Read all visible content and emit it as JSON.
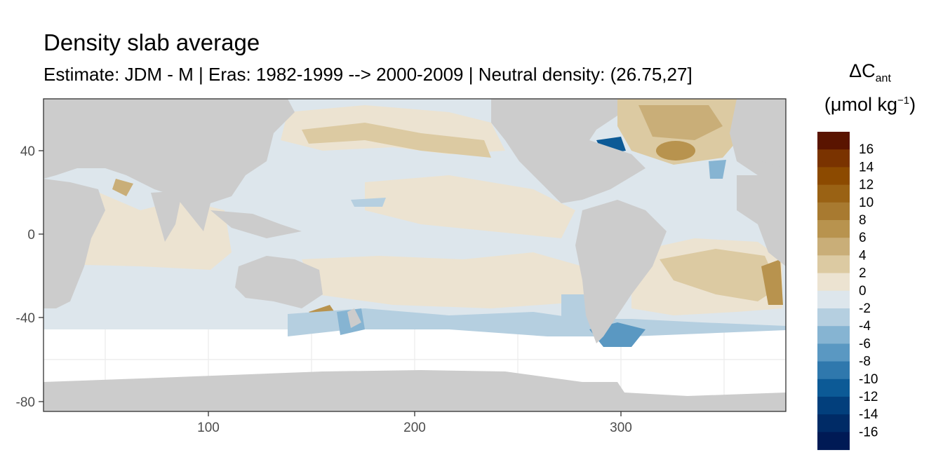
{
  "title": "Density slab average",
  "subtitle": "Estimate: JDM - M | Eras: 1982-1999 --> 2000-2009 | Neutral density: (26.75,27]",
  "legend": {
    "title_symbol": "ΔC",
    "title_subscript": "ant",
    "unit_prefix": "(μmol kg",
    "unit_superscript": "−1",
    "unit_suffix": ")",
    "bins": [
      {
        "label": "16",
        "color": "#5a1400"
      },
      {
        "label": "14",
        "color": "#7a3300"
      },
      {
        "label": "12",
        "color": "#8c4a00"
      },
      {
        "label": "10",
        "color": "#9a6214"
      },
      {
        "label": "8",
        "color": "#a87a30"
      },
      {
        "label": "6",
        "color": "#b8934e"
      },
      {
        "label": "4",
        "color": "#c9ae78"
      },
      {
        "label": "2",
        "color": "#dccaa2"
      },
      {
        "label": "0",
        "color": "#ece3d1"
      },
      {
        "label": "-2",
        "color": "#dde6ec"
      },
      {
        "label": "-4",
        "color": "#b5cfe0"
      },
      {
        "label": "-6",
        "color": "#86b4d2"
      },
      {
        "label": "-8",
        "color": "#5a98c2"
      },
      {
        "label": "-10",
        "color": "#2f78ad"
      },
      {
        "label": "-12",
        "color": "#0c5a96"
      },
      {
        "label": "-14",
        "color": "#023f7c"
      },
      {
        "label": "-16",
        "color": "#002b66"
      },
      {
        "label": "",
        "color": "#001a55"
      }
    ]
  },
  "x_axis": {
    "ticks": [
      100,
      200,
      300
    ],
    "range": [
      20,
      380
    ]
  },
  "y_axis": {
    "ticks": [
      40,
      0,
      -40,
      -80
    ],
    "range": [
      -85,
      65
    ]
  },
  "colors": {
    "land": "#cccccc",
    "panel_border": "#333333",
    "grid": "#ebebeb"
  }
}
